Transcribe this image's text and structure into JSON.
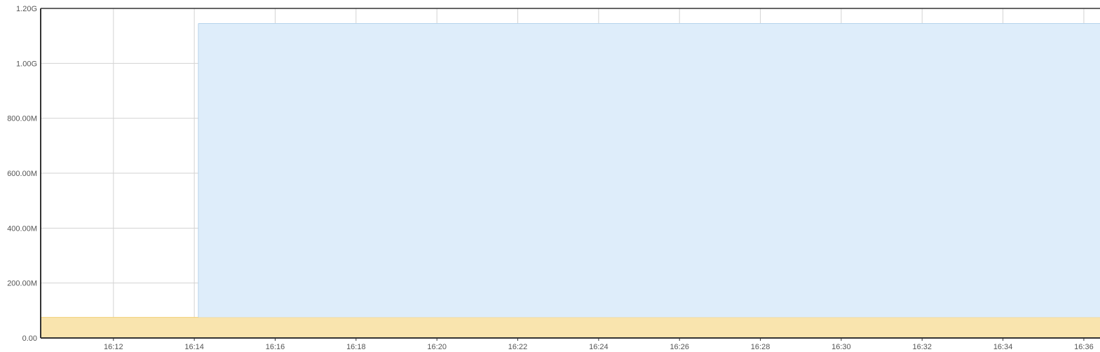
{
  "colors": {
    "background": "#ffffff",
    "grid": "#d3d3d3",
    "axis": "#333333",
    "tick_text": "#555555",
    "series_blue_fill": "#deedfa",
    "series_blue_stroke": "#b7d4ec",
    "series_yellow_fill": "#f9e4ae",
    "series_yellow_stroke": "#f0cf78"
  },
  "chart_data": {
    "type": "area",
    "title": "",
    "xlabel": "",
    "ylabel": "",
    "x_ticks": [
      "16:12",
      "16:14",
      "16:16",
      "16:18",
      "16:20",
      "16:22",
      "16:24",
      "16:26",
      "16:28",
      "16:30",
      "16:32",
      "16:34",
      "16:36"
    ],
    "x_range": [
      "16:10:12",
      "16:36:24"
    ],
    "y_ticks": [
      "0.00",
      "200.00M",
      "400.00M",
      "600.00M",
      "800.00M",
      "1.00G",
      "1.20G"
    ],
    "ylim": [
      0,
      1200000000
    ],
    "grid": true,
    "legend": "none",
    "stacked": true,
    "series": [
      {
        "color": "#f9e4ae",
        "points": [
          {
            "x": "16:10:12",
            "y": 75000000
          },
          {
            "x": "16:36:24",
            "y": 75000000
          }
        ]
      },
      {
        "color": "#deedfa",
        "points": [
          {
            "x": "16:14:06",
            "y": 1070000000
          },
          {
            "x": "16:36:24",
            "y": 1070000000
          }
        ]
      }
    ]
  }
}
